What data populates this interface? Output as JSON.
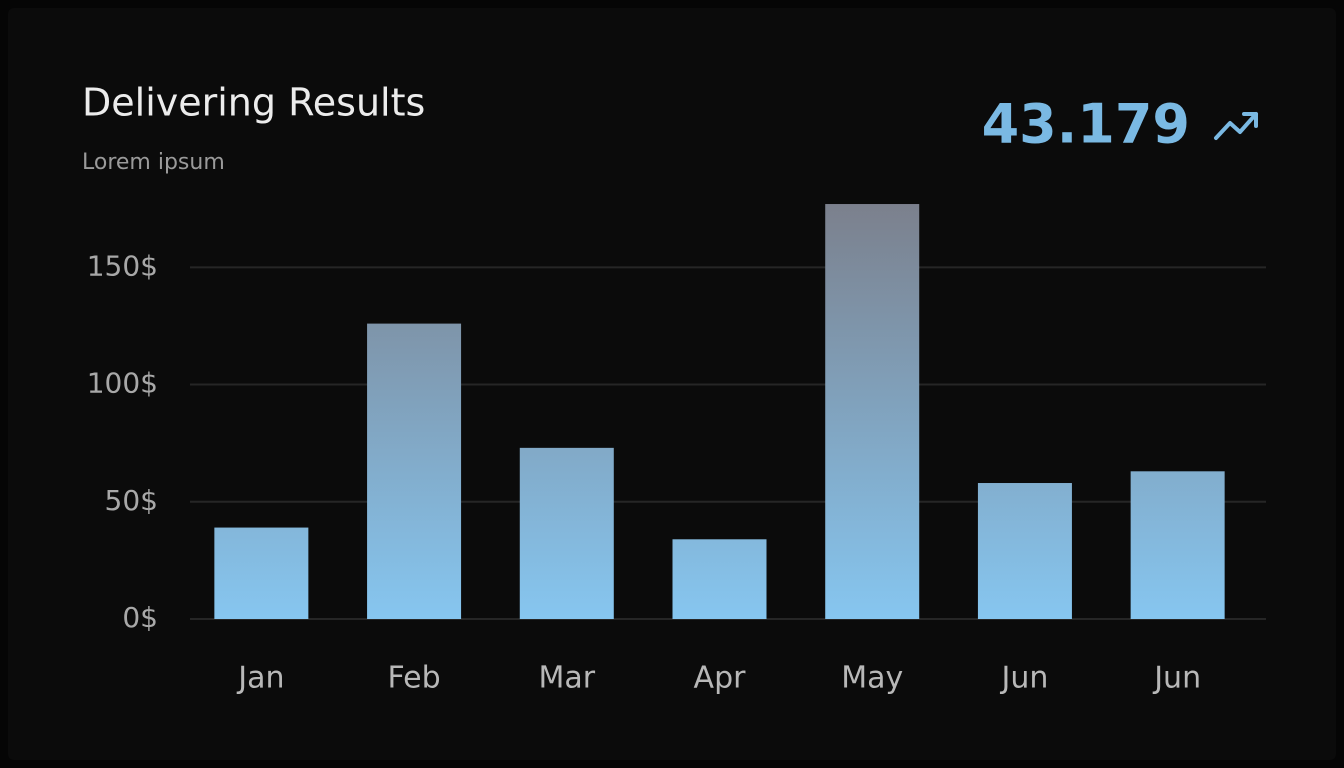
{
  "header": {
    "title": "Delivering Results",
    "subtitle": "Lorem ipsum",
    "kpi": "43.179"
  },
  "chart_data": {
    "type": "bar",
    "categories": [
      "Jan",
      "Feb",
      "Mar",
      "Apr",
      "May",
      "Jun",
      "Jun"
    ],
    "values": [
      39,
      126,
      73,
      34,
      177,
      58,
      63
    ],
    "gradient": [
      "#7b7f8b",
      "#86c6f0"
    ],
    "ylim": [
      0,
      180
    ],
    "yticks": [
      {
        "value": 0,
        "label": "0$"
      },
      {
        "value": 50,
        "label": "50$"
      },
      {
        "value": 100,
        "label": "100$"
      },
      {
        "value": 150,
        "label": "150$"
      }
    ],
    "grid": true
  }
}
